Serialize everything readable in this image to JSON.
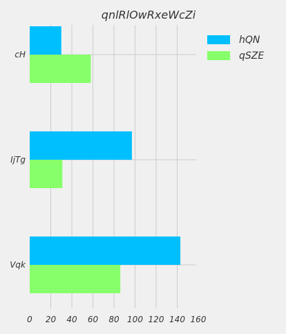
{
  "chart_data": {
    "type": "bar",
    "orientation": "horizontal",
    "title": "qnlRlOwRxeWcZi",
    "xlabel": "",
    "ylabel": "",
    "categories": [
      "cH",
      "IjTg",
      "Vqk"
    ],
    "series": [
      {
        "name": "hQN",
        "values": [
          30,
          97,
          143
        ],
        "color": "#00bfff"
      },
      {
        "name": "qSZE",
        "values": [
          58,
          31,
          86
        ],
        "color": "#87ff6a"
      }
    ],
    "xlim": [
      0,
      160
    ],
    "xticks": [
      0,
      20,
      40,
      60,
      80,
      100,
      120,
      140,
      160
    ],
    "grid": true,
    "legend_position": "top-right"
  }
}
